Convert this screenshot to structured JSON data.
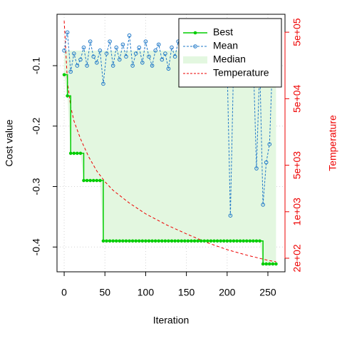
{
  "chart_data": {
    "type": "line",
    "xlabel": "Iteration",
    "ylabel": "Cost value",
    "y2label": "Temperature",
    "x": [
      0,
      4,
      8,
      12,
      16,
      20,
      24,
      28,
      32,
      36,
      40,
      44,
      48,
      52,
      56,
      60,
      64,
      68,
      72,
      76,
      80,
      84,
      88,
      92,
      96,
      100,
      104,
      108,
      112,
      116,
      120,
      124,
      128,
      132,
      136,
      140,
      144,
      148,
      152,
      156,
      160,
      164,
      168,
      172,
      176,
      180,
      184,
      188,
      192,
      196,
      200,
      204,
      208,
      212,
      216,
      220,
      224,
      228,
      232,
      236,
      240,
      244,
      248,
      252,
      256,
      260
    ],
    "series": [
      {
        "name": "Best",
        "color": "#00cd00",
        "values": [
          -0.115,
          -0.15,
          -0.245,
          -0.245,
          -0.245,
          -0.245,
          -0.29,
          -0.29,
          -0.29,
          -0.29,
          -0.29,
          -0.29,
          -0.39,
          -0.39,
          -0.39,
          -0.39,
          -0.39,
          -0.39,
          -0.39,
          -0.39,
          -0.39,
          -0.39,
          -0.39,
          -0.39,
          -0.39,
          -0.39,
          -0.39,
          -0.39,
          -0.39,
          -0.39,
          -0.39,
          -0.39,
          -0.39,
          -0.39,
          -0.39,
          -0.39,
          -0.39,
          -0.39,
          -0.39,
          -0.39,
          -0.39,
          -0.39,
          -0.39,
          -0.39,
          -0.39,
          -0.39,
          -0.39,
          -0.39,
          -0.39,
          -0.39,
          -0.39,
          -0.39,
          -0.39,
          -0.39,
          -0.39,
          -0.39,
          -0.39,
          -0.39,
          -0.39,
          -0.39,
          -0.39,
          -0.428,
          -0.428,
          -0.428,
          -0.428,
          -0.428
        ]
      },
      {
        "name": "Mean",
        "color": "#1f78c8",
        "values": [
          -0.075,
          -0.045,
          -0.11,
          -0.08,
          -0.1,
          -0.09,
          -0.07,
          -0.1,
          -0.06,
          -0.085,
          -0.095,
          -0.075,
          -0.13,
          -0.08,
          -0.06,
          -0.1,
          -0.07,
          -0.09,
          -0.065,
          -0.085,
          -0.05,
          -0.1,
          -0.08,
          -0.07,
          -0.095,
          -0.06,
          -0.085,
          -0.1,
          -0.075,
          -0.065,
          -0.09,
          -0.08,
          -0.105,
          -0.07,
          -0.085,
          -0.06,
          -0.1,
          -0.075,
          -0.09,
          -0.08,
          -0.07,
          -0.1,
          -0.085,
          -0.065,
          -0.11,
          -0.09,
          -0.08,
          -0.07,
          -0.095,
          -0.085,
          -0.1,
          -0.348,
          -0.09,
          -0.075,
          -0.1,
          -0.08,
          -0.07,
          -0.095,
          -0.085,
          -0.27,
          -0.1,
          -0.33,
          -0.26,
          -0.23,
          -0.08,
          -0.09
        ]
      },
      {
        "name": "Median",
        "color": "#e3f7e0",
        "values": [
          -0.075,
          -0.075,
          -0.075,
          -0.075,
          -0.075,
          -0.075,
          -0.075,
          -0.075,
          -0.075,
          -0.075,
          -0.075,
          -0.075,
          -0.075,
          -0.075,
          -0.075,
          -0.075,
          -0.075,
          -0.075,
          -0.075,
          -0.075,
          -0.075,
          -0.075,
          -0.075,
          -0.075,
          -0.075,
          -0.075,
          -0.075,
          -0.075,
          -0.075,
          -0.075,
          -0.075,
          -0.075,
          -0.075,
          -0.075,
          -0.075,
          -0.075,
          -0.075,
          -0.075,
          -0.075,
          -0.075,
          -0.075,
          -0.075,
          -0.075,
          -0.075,
          -0.075,
          -0.075,
          -0.075,
          -0.075,
          -0.075,
          -0.075,
          -0.075,
          -0.075,
          -0.075,
          -0.075,
          -0.075,
          -0.075,
          -0.075,
          -0.075,
          -0.075,
          -0.075,
          -0.075,
          -0.075,
          -0.075,
          -0.075,
          -0.075,
          -0.075
        ]
      },
      {
        "name": "Temperature",
        "color": "#ee0000",
        "axis": "y2",
        "x": [
          0,
          4,
          8,
          12,
          20,
          30,
          40,
          50,
          60,
          80,
          100,
          125,
          150,
          175,
          200,
          225,
          250,
          260
        ],
        "values": [
          743000,
          90600,
          38100,
          23200,
          12500,
          6730,
          4100,
          2830,
          2100,
          1350,
          930,
          640,
          465,
          345,
          269,
          221,
          186,
          177
        ]
      }
    ],
    "xlim": [
      -8.8,
      271
    ],
    "xticks": [
      0,
      50,
      100,
      150,
      200,
      250
    ],
    "ylim": [
      -0.441,
      -0.015
    ],
    "yticks": [
      -0.1,
      -0.2,
      -0.3,
      -0.4
    ],
    "y2lim": [
      125,
      930000
    ],
    "y2log": true,
    "y2ticks": [
      {
        "value": 500000,
        "label": "5e+05"
      },
      {
        "value": 50000,
        "label": "5e+04"
      },
      {
        "value": 5000,
        "label": "5e+03"
      },
      {
        "value": 1000,
        "label": "1e+03"
      },
      {
        "value": 200,
        "label": "2e+02"
      }
    ],
    "grid": true,
    "legend": "top-right"
  }
}
